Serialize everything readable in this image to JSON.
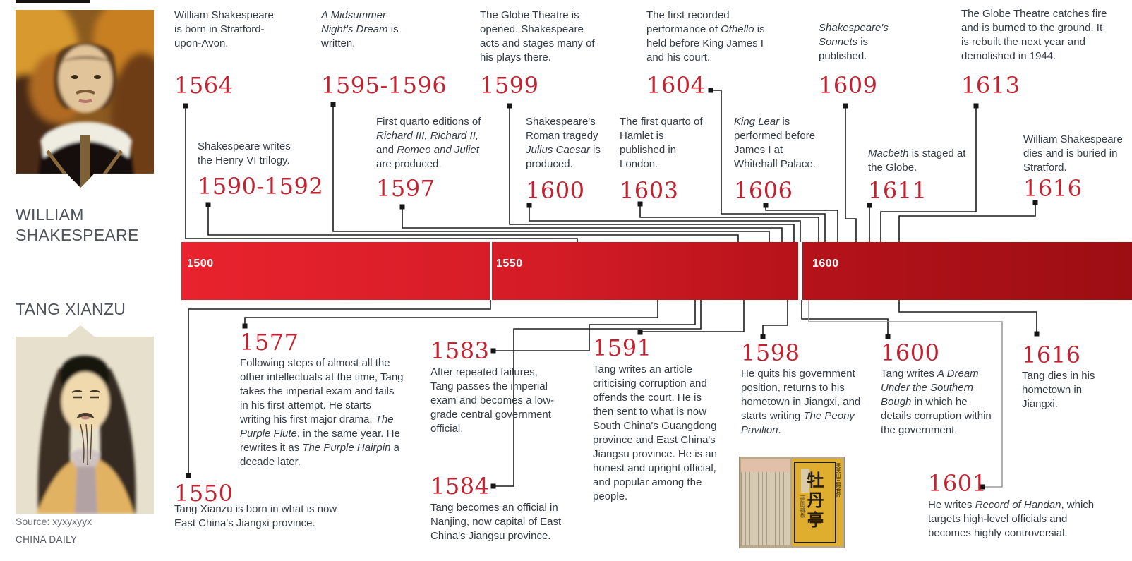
{
  "left_panel": {
    "shakespeare_label": "WILLIAM SHAKESPEARE",
    "tang_label": "TANG XIANZU",
    "source_line": "Source: xyxyxyyx",
    "credit_line": "CHINA DAILY",
    "shakespeare_portrait_alt": "portrait-of-william-shakespeare",
    "tang_portrait_alt": "portrait-of-tang-xianzu"
  },
  "timeline_bar": {
    "segments": [
      {
        "label": "1500"
      },
      {
        "label": "1550"
      },
      {
        "label": "1600"
      }
    ],
    "bar_color_left": "#e8232e",
    "bar_color_right": "#9c0e13",
    "year_color": "#c32330",
    "text_color": "#333b44"
  },
  "shakespeare_events": [
    {
      "year": "1564",
      "segments": [
        {
          "t": "William Shakespeare is born in Stratford-upon-Avon.",
          "i": false
        }
      ]
    },
    {
      "year": "1590-1592",
      "segments": [
        {
          "t": "Shakespeare writes the Henry VI trilogy.",
          "i": false
        }
      ]
    },
    {
      "year": "1595-1596",
      "segments": [
        {
          "t": "A Midsummer Night's Dream",
          "i": true
        },
        {
          "t": " is written.",
          "i": false
        }
      ]
    },
    {
      "year": "1597",
      "segments": [
        {
          "t": "First quarto editions of ",
          "i": false
        },
        {
          "t": "Richard III, Richard II,",
          "i": true
        },
        {
          "t": " and ",
          "i": false
        },
        {
          "t": "Romeo and Juliet",
          "i": true
        },
        {
          "t": " are produced.",
          "i": false
        }
      ]
    },
    {
      "year": "1599",
      "segments": [
        {
          "t": "The Globe Theatre is opened. Shakespeare acts and stages many of his plays there.",
          "i": false
        }
      ]
    },
    {
      "year": "1600",
      "segments": [
        {
          "t": "Shakespeare's Roman tragedy ",
          "i": false
        },
        {
          "t": "Julius Caesar",
          "i": true
        },
        {
          "t": " is produced.",
          "i": false
        }
      ]
    },
    {
      "year": "1603",
      "segments": [
        {
          "t": "The first quarto of Hamlet is published in London.",
          "i": false
        }
      ]
    },
    {
      "year": "1604",
      "segments": [
        {
          "t": "The first recorded performance of ",
          "i": false
        },
        {
          "t": "Othello",
          "i": true
        },
        {
          "t": " is held before King James I and his court.",
          "i": false
        }
      ]
    },
    {
      "year": "1606",
      "segments": [
        {
          "t": "King Lear",
          "i": true
        },
        {
          "t": " is performed before James I at Whitehall Palace.",
          "i": false
        }
      ]
    },
    {
      "year": "1609",
      "segments": [
        {
          "t": "Shakespeare's Sonnets",
          "i": true
        },
        {
          "t": " is published.",
          "i": false
        }
      ]
    },
    {
      "year": "1611",
      "segments": [
        {
          "t": "Macbeth",
          "i": true
        },
        {
          "t": " is staged at the Globe.",
          "i": false
        }
      ]
    },
    {
      "year": "1613",
      "segments": [
        {
          "t": "The Globe Theatre catches fire and is burned to the ground. It is rebuilt the next year and demolished in 1944.",
          "i": false
        }
      ]
    },
    {
      "year": "1616",
      "segments": [
        {
          "t": "William Shakespeare dies and is buried in Stratford.",
          "i": false
        }
      ]
    }
  ],
  "tang_events": [
    {
      "year": "1550",
      "segments": [
        {
          "t": "Tang Xianzu is born in what is now East China's Jiangxi province.",
          "i": false
        }
      ]
    },
    {
      "year": "1577",
      "segments": [
        {
          "t": "Following steps of almost all the other intellectuals at the time, Tang takes the imperial exam and fails in his first attempt. He starts writing his first major drama, ",
          "i": false
        },
        {
          "t": "The Purple Flute",
          "i": true
        },
        {
          "t": ", in the same year. He rewrites it as ",
          "i": false
        },
        {
          "t": "The Purple Hairpin",
          "i": true
        },
        {
          "t": " a decade later.",
          "i": false
        }
      ]
    },
    {
      "year": "1583",
      "segments": [
        {
          "t": "After repeated failures, Tang passes the imperial exam and becomes a low-grade central government official.",
          "i": false
        }
      ]
    },
    {
      "year": "1584",
      "segments": [
        {
          "t": "Tang becomes an official in Nanjing, now capital of East China's Jiangsu province.",
          "i": false
        }
      ]
    },
    {
      "year": "1591",
      "segments": [
        {
          "t": "Tang writes an article criticising corruption and offends the court. He is then sent to what is now South China's Guangdong province and East China's Jiangsu province. He is an honest and upright official, and popular among the people.",
          "i": false
        }
      ]
    },
    {
      "year": "1598",
      "segments": [
        {
          "t": "He quits his government position, returns to his hometown in Jiangxi, and starts writing ",
          "i": false
        },
        {
          "t": "The Peony Pavilion",
          "i": true
        },
        {
          "t": ".",
          "i": false
        }
      ]
    },
    {
      "year": "1600",
      "segments": [
        {
          "t": "Tang writes ",
          "i": false
        },
        {
          "t": "A Dream Under the Southern Bough",
          "i": true
        },
        {
          "t": " in which he details corruption within the government.",
          "i": false
        }
      ]
    },
    {
      "year": "1601",
      "segments": [
        {
          "t": "He writes ",
          "i": false
        },
        {
          "t": "Record of Handan",
          "i": true
        },
        {
          "t": ", which targets high-level officials and becomes highly controversial.",
          "i": false
        }
      ]
    },
    {
      "year": "1616",
      "segments": [
        {
          "t": "Tang dies in his hometown in Jiangxi.",
          "i": false
        }
      ]
    }
  ],
  "book_image": {
    "title_chars": "牡丹亭",
    "side_text_right": "吴吴山三婦合評",
    "side_text_left": "夢園藏板"
  }
}
